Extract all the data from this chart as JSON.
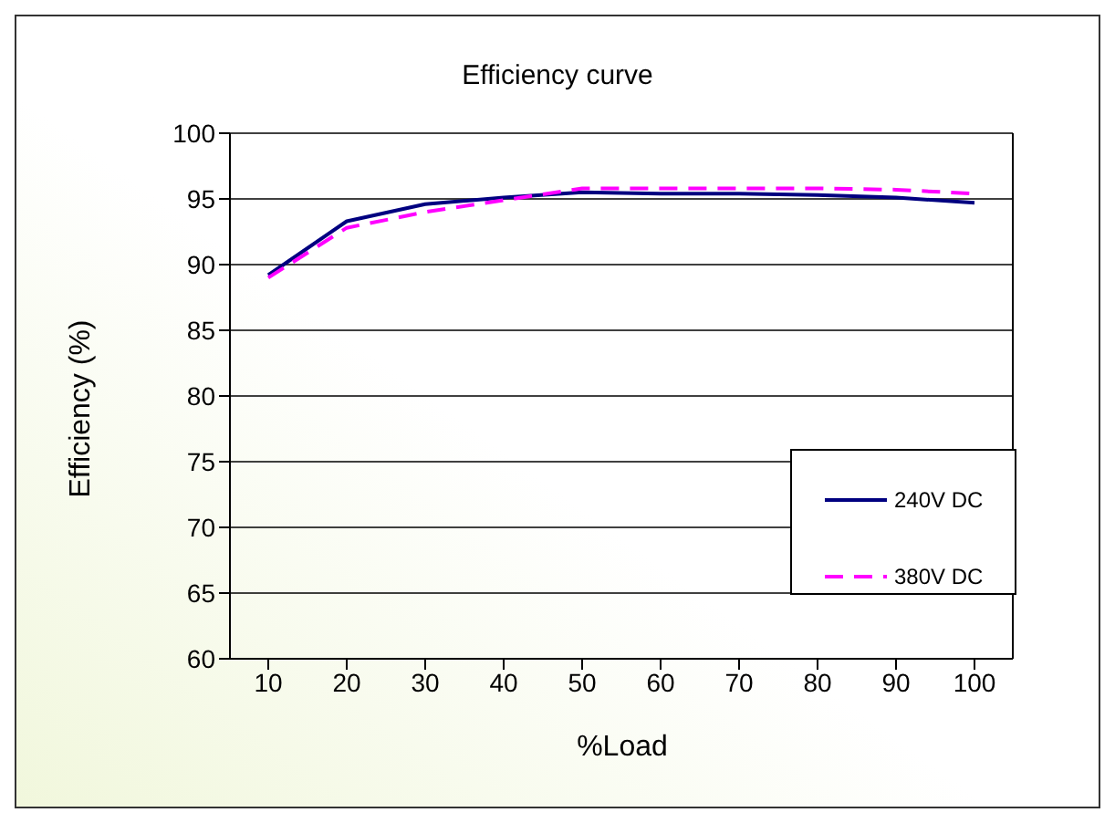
{
  "chart_data": {
    "type": "line",
    "title": "Efficiency curve",
    "xlabel": "%Load",
    "ylabel": "Efficiency (%)",
    "categories": [
      "10",
      "20",
      "30",
      "40",
      "50",
      "60",
      "70",
      "80",
      "90",
      "100"
    ],
    "series": [
      {
        "name": "240V DC",
        "color": "#000080",
        "line_style": "solid",
        "values": [
          89.2,
          93.3,
          94.6,
          95.1,
          95.5,
          95.4,
          95.4,
          95.3,
          95.1,
          94.7
        ]
      },
      {
        "name": "380V DC",
        "color": "#ff00ff",
        "line_style": "dashed",
        "values": [
          89.0,
          92.8,
          94.0,
          94.9,
          95.8,
          95.8,
          95.8,
          95.8,
          95.7,
          95.4
        ]
      }
    ],
    "ylim": [
      60,
      100
    ],
    "yticks": [
      60,
      65,
      70,
      75,
      80,
      85,
      90,
      95,
      100
    ],
    "grid": "y",
    "legend": "bottom right",
    "marker": "none"
  }
}
